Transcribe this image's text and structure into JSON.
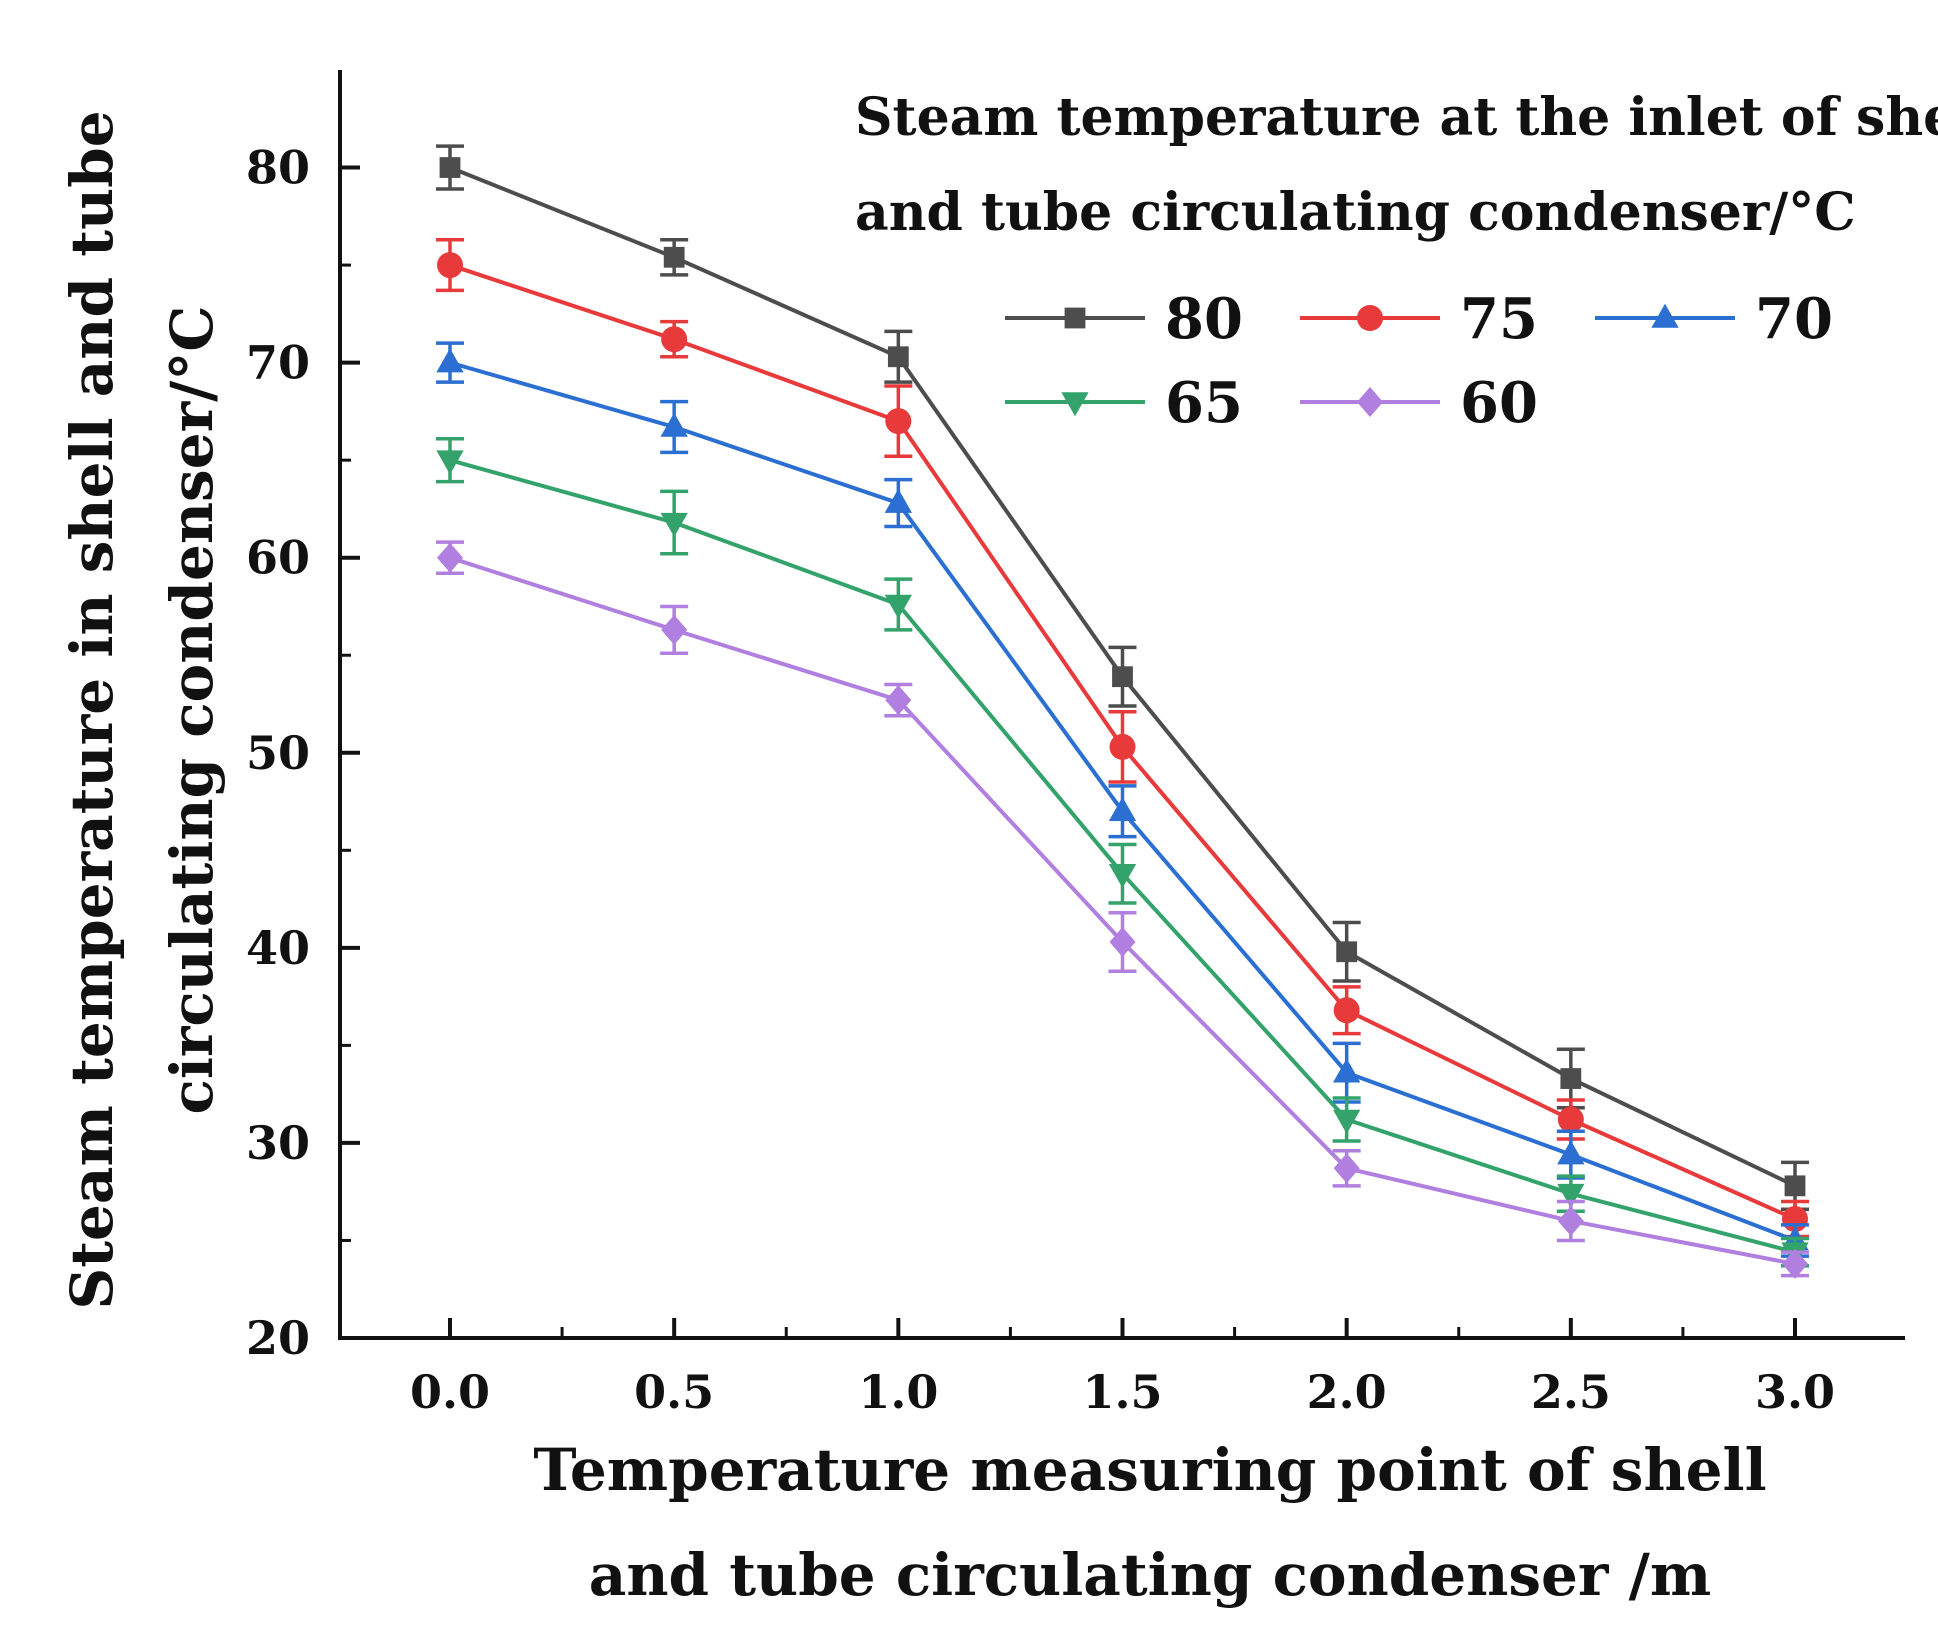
{
  "chart_data": {
    "type": "line",
    "title": "",
    "xlabel_lines": [
      "Temperature measuring point of shell",
      "and tube circulating condenser /m"
    ],
    "ylabel_lines": [
      "Steam temperature in shell and tube",
      "circulating condenser/°C"
    ],
    "x": [
      0.0,
      0.5,
      1.0,
      1.5,
      2.0,
      2.5,
      3.0
    ],
    "x_tick_labels": [
      "0.0",
      "0.5",
      "1.0",
      "1.5",
      "2.0",
      "2.5",
      "3.0"
    ],
    "y_ticks": [
      20,
      30,
      40,
      50,
      60,
      70,
      80
    ],
    "y_tick_labels": [
      "20",
      "30",
      "40",
      "50",
      "60",
      "70",
      "80"
    ],
    "xlim": [
      -0.25,
      3.25
    ],
    "ylim": [
      20,
      85
    ],
    "grid": false,
    "legend": {
      "title_lines": [
        "Steam temperature at the inlet of shell",
        "and tube circulating condenser/°C"
      ],
      "placement": "top-right"
    },
    "series": [
      {
        "name": "80",
        "color": "#4d4d4d",
        "marker": "square",
        "values": [
          80.0,
          75.4,
          70.3,
          53.9,
          39.8,
          33.3,
          27.8
        ],
        "errors": [
          1.1,
          0.9,
          1.3,
          1.5,
          1.5,
          1.5,
          1.2
        ]
      },
      {
        "name": "75",
        "color": "#e8393b",
        "marker": "circle",
        "values": [
          75.0,
          71.2,
          67.0,
          50.3,
          36.8,
          31.2,
          26.1
        ],
        "errors": [
          1.3,
          0.9,
          1.8,
          1.8,
          1.2,
          1.0,
          0.9
        ]
      },
      {
        "name": "70",
        "color": "#2a6fd1",
        "marker": "triangle-up",
        "values": [
          70.0,
          66.7,
          62.8,
          47.0,
          33.6,
          29.4,
          25.0
        ],
        "errors": [
          1.0,
          1.3,
          1.2,
          1.3,
          1.5,
          1.2,
          0.8
        ]
      },
      {
        "name": "65",
        "color": "#33a36b",
        "marker": "triangle-down",
        "values": [
          65.0,
          61.8,
          57.6,
          43.8,
          31.2,
          27.4,
          24.4
        ],
        "errors": [
          1.1,
          1.6,
          1.3,
          1.5,
          1.1,
          0.9,
          0.7
        ]
      },
      {
        "name": "60",
        "color": "#b07fe0",
        "marker": "diamond",
        "values": [
          60.0,
          56.3,
          52.7,
          40.3,
          28.7,
          26.0,
          23.8
        ],
        "errors": [
          0.8,
          1.2,
          0.8,
          1.5,
          0.9,
          1.0,
          0.6
        ]
      }
    ]
  }
}
